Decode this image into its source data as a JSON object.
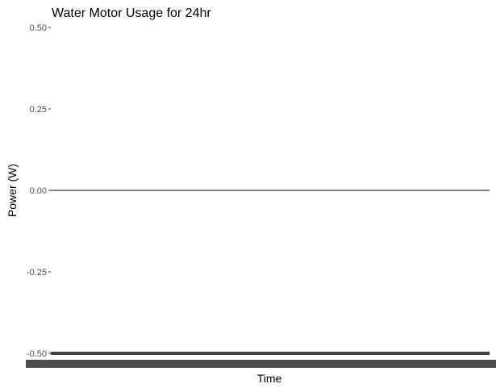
{
  "chart_data": {
    "type": "line",
    "title": "Water Motor Usage for 24hr",
    "xlabel": "Time",
    "ylabel": "Power (W)",
    "ylim": [
      -0.5,
      0.5
    ],
    "yticks": [
      {
        "value": 0.5,
        "label": "0.50"
      },
      {
        "value": 0.25,
        "label": "0.25"
      },
      {
        "value": 0.0,
        "label": "0.00"
      },
      {
        "value": -0.25,
        "label": "-0.25"
      },
      {
        "value": -0.5,
        "label": "-0.50"
      }
    ],
    "reference_line": {
      "y": 0
    },
    "grid": false,
    "colors": {
      "line": "#000000",
      "tick_text": "#4d4d4d",
      "tick_mark": "#333333",
      "bottom_band": "#404040",
      "tick_label_smear": "#4d4d4d"
    }
  }
}
